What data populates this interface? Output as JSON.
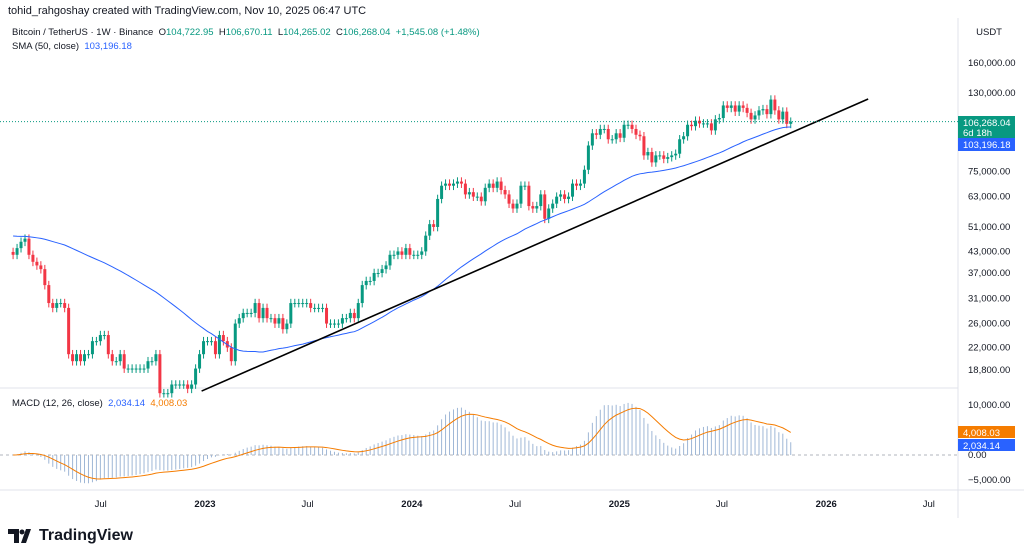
{
  "header": {
    "credit": "tohid_rahgoshay created with TradingView.com, Nov 10, 2025 06:47 UTC"
  },
  "legend": {
    "symbol": "Bitcoin / TetherUS · 1W · Binance",
    "o_label": "O",
    "open": "104,722.95",
    "h_label": "H",
    "high": "106,670.11",
    "l_label": "L",
    "low": "104,265.02",
    "c_label": "C",
    "close": "106,268.04",
    "change": "+1,545.08 (+1.48%)",
    "sma_label": "SMA (50, close)",
    "sma_value": "103,196.18"
  },
  "currency": "USDT",
  "macd_legend": {
    "label": "MACD (12, 26, close)",
    "macd": "2,034.14",
    "signal": "4,008.03"
  },
  "price_labels": {
    "last": "106,268.04",
    "countdown": "6d 18h",
    "sma": "103,196.18",
    "macd_signal": "4,008.03",
    "macd": "2,034.14"
  },
  "logo": "TradingView",
  "colors": {
    "up": "#089981",
    "down": "#f23645",
    "sma": "#2962ff",
    "signal": "#f57c00",
    "histogram": "#9fb7d6",
    "trendline": "#000000"
  },
  "chart_data": {
    "type": "candlestick",
    "scale": "log",
    "last_bar_date": "2025-11-10",
    "weekly_close_thousands": [
      42,
      44,
      46,
      47,
      42,
      40,
      39,
      38,
      34,
      30,
      29,
      30,
      30,
      29,
      21,
      20,
      21,
      20,
      21,
      21,
      23,
      23,
      24,
      24,
      21,
      20,
      20,
      21,
      19,
      19,
      19,
      19,
      19,
      19,
      20,
      20,
      21,
      16,
      16,
      16,
      17,
      17,
      17,
      17,
      16.5,
      17,
      19,
      21,
      23,
      23,
      23,
      21,
      24,
      23,
      22,
      20,
      26,
      27,
      28,
      28,
      28,
      30,
      27,
      29,
      27,
      27,
      26,
      27,
      25,
      26,
      30,
      30,
      30,
      30,
      30,
      29,
      29,
      29,
      29,
      26,
      26,
      26,
      26,
      27,
      27,
      28,
      27,
      30,
      34,
      35,
      35,
      37,
      37,
      38,
      39,
      42,
      42,
      43,
      42,
      44,
      42,
      42,
      42,
      43,
      48,
      52,
      51,
      62,
      68,
      69,
      68,
      69,
      70,
      69,
      64,
      65,
      63,
      63,
      61,
      67,
      69,
      67,
      70,
      66,
      64,
      60,
      58,
      60,
      68,
      68,
      59,
      58,
      59,
      64,
      54,
      58,
      60,
      63,
      64,
      62,
      63,
      69,
      68,
      69,
      76,
      90,
      98,
      97,
      101,
      101,
      94,
      94,
      98,
      95,
      104,
      104,
      101,
      97,
      96,
      84,
      86,
      80,
      84,
      84,
      82,
      83,
      84,
      85,
      94,
      96,
      104,
      103,
      107,
      105,
      105,
      105,
      100,
      108,
      109,
      119,
      117,
      119,
      114,
      119,
      117,
      113,
      108,
      111,
      115,
      116,
      112,
      124,
      115,
      108,
      114,
      104.7,
      106.27
    ],
    "price_ticks": [
      160000,
      130000,
      75000,
      63000,
      51000,
      43000,
      37000,
      31000,
      26000,
      22000,
      18800
    ],
    "price_tick_labels": [
      "160,000.00",
      "130,000.00",
      "75,000.00",
      "63,000.00",
      "51,000.00",
      "43,000.00",
      "37,000.00",
      "31,000.00",
      "26,000.00",
      "22,000.00",
      "18,800.00"
    ],
    "time_ticks": [
      {
        "date": "2022-07-01",
        "label": "Jul"
      },
      {
        "date": "2023-01-01",
        "label": "2023"
      },
      {
        "date": "2023-07-01",
        "label": "Jul"
      },
      {
        "date": "2024-01-01",
        "label": "2024"
      },
      {
        "date": "2024-07-01",
        "label": "Jul"
      },
      {
        "date": "2025-01-01",
        "label": "2025"
      },
      {
        "date": "2025-07-01",
        "label": "Jul"
      },
      {
        "date": "2026-01-01",
        "label": "2026"
      },
      {
        "date": "2026-07-01",
        "label": "Jul"
      }
    ],
    "macd_ticks": [
      {
        "v": 10000,
        "label": "10,000.00"
      },
      {
        "v": 0,
        "label": "0.00"
      },
      {
        "v": -5000,
        "label": "−5,000.00"
      }
    ],
    "trendline": [
      {
        "date": "2022-12-26",
        "price": 16240
      },
      {
        "date": "2026-03-16",
        "price": 124500
      }
    ]
  }
}
